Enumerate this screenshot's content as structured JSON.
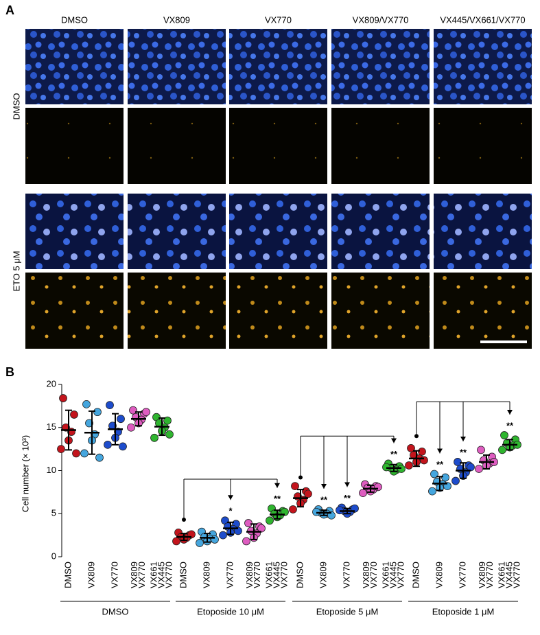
{
  "panel_a": {
    "label": "A",
    "columns": [
      "DMSO",
      "VX809",
      "VX770",
      "VX809/VX770",
      "VX445/VX661/VX770"
    ],
    "rows": [
      "DMSO",
      "ETO 5 μM"
    ]
  },
  "chart_data": {
    "type": "dotplot",
    "label": "B",
    "y_label": "Cell number (× 10³)",
    "ylim": [
      0,
      20
    ],
    "yticks": [
      0,
      5,
      10,
      15,
      20
    ],
    "colors": [
      "#c3141c",
      "#45a6de",
      "#1d4ccc",
      "#de5cc0",
      "#2fb52f"
    ],
    "groups": [
      {
        "name": "DMSO",
        "categories": [
          [
            "DMSO"
          ],
          [
            "VX809"
          ],
          [
            "VX770"
          ],
          [
            "VX809",
            "VX770"
          ],
          [
            "VX661",
            "VX445",
            "VX770"
          ]
        ],
        "mean": [
          14.7,
          14.4,
          14.8,
          16.0,
          15.1
        ],
        "sd": [
          2.3,
          2.5,
          1.8,
          0.8,
          1.0
        ],
        "points": [
          [
            18.4,
            16.5,
            15.0,
            14.5,
            13.5,
            12.5,
            12.0
          ],
          [
            17.7,
            16.8,
            15.5,
            14.2,
            13.5,
            12.0,
            11.5
          ],
          [
            17.6,
            16.0,
            15.2,
            14.5,
            13.8,
            13.0,
            12.8
          ],
          [
            17.0,
            16.6,
            16.2,
            15.9,
            15.5,
            15.0,
            16.8
          ],
          [
            16.2,
            15.8,
            15.5,
            15.0,
            14.6,
            13.8,
            14.2
          ]
        ]
      },
      {
        "name": "Etoposide 10 μM",
        "categories": [
          [
            "DMSO"
          ],
          [
            "VX809"
          ],
          [
            "VX770"
          ],
          [
            "VX809",
            "VX770"
          ],
          [
            "VX661",
            "VX445",
            "VX770"
          ]
        ],
        "mean": [
          2.3,
          2.2,
          3.3,
          2.9,
          4.9
        ],
        "sd": [
          0.4,
          0.5,
          0.7,
          0.9,
          0.5
        ],
        "points": [
          [
            2.8,
            2.5,
            2.3,
            2.2,
            2.0,
            1.8,
            2.6
          ],
          [
            2.9,
            2.6,
            2.3,
            2.1,
            1.8,
            1.6,
            2.0
          ],
          [
            4.2,
            3.8,
            3.5,
            3.2,
            2.8,
            2.5,
            3.0
          ],
          [
            3.9,
            3.5,
            3.0,
            2.7,
            2.2,
            1.8,
            3.3
          ],
          [
            5.6,
            5.3,
            5.0,
            4.8,
            4.6,
            4.2,
            5.2
          ]
        ],
        "comparison": {
          "from": 4.3,
          "bracket": 9.0,
          "targets": [
            2,
            4
          ],
          "labels": [
            "*",
            "**"
          ]
        }
      },
      {
        "name": "Etoposide 5 μM",
        "categories": [
          [
            "DMSO"
          ],
          [
            "VX809"
          ],
          [
            "VX770"
          ],
          [
            "VX809",
            "VX770"
          ],
          [
            "VX661",
            "VX445",
            "VX770"
          ]
        ],
        "mean": [
          6.8,
          5.1,
          5.3,
          7.9,
          10.3
        ],
        "sd": [
          1.0,
          0.3,
          0.3,
          0.4,
          0.4
        ],
        "points": [
          [
            8.2,
            7.6,
            7.0,
            6.6,
            6.2,
            5.5,
            7.3
          ],
          [
            5.5,
            5.3,
            5.1,
            5.0,
            4.9,
            5.2,
            4.8
          ],
          [
            5.7,
            5.5,
            5.3,
            5.2,
            5.0,
            5.4,
            5.6
          ],
          [
            8.4,
            8.2,
            8.0,
            7.8,
            7.6,
            7.4,
            8.1
          ],
          [
            10.8,
            10.5,
            10.3,
            10.1,
            9.9,
            10.4,
            10.2
          ]
        ],
        "comparison": {
          "from": 9.2,
          "bracket": 14.0,
          "targets": [
            1,
            2,
            4
          ],
          "labels": [
            "**",
            "**",
            "**"
          ]
        }
      },
      {
        "name": "Etoposide 1 μM",
        "categories": [
          [
            "DMSO"
          ],
          [
            "VX809"
          ],
          [
            "VX770"
          ],
          [
            "VX809",
            "VX770"
          ],
          [
            "VX661",
            "VX445",
            "VX770"
          ]
        ],
        "mean": [
          11.4,
          8.5,
          10.0,
          11.0,
          13.0
        ],
        "sd": [
          0.9,
          0.8,
          0.9,
          0.8,
          0.6
        ],
        "points": [
          [
            12.6,
            12.2,
            11.8,
            11.4,
            11.0,
            10.6,
            11.2
          ],
          [
            9.6,
            9.2,
            8.7,
            8.4,
            8.0,
            7.6,
            8.2
          ],
          [
            11.0,
            10.6,
            10.2,
            9.8,
            9.4,
            8.8,
            10.4
          ],
          [
            12.4,
            11.6,
            11.2,
            10.8,
            10.6,
            10.2,
            11.0
          ],
          [
            14.1,
            13.6,
            13.2,
            12.9,
            12.7,
            12.4,
            13.0
          ]
        ],
        "comparison": {
          "from": 14.0,
          "bracket": 18.0,
          "targets": [
            1,
            2,
            4
          ],
          "labels": [
            "**",
            "**",
            "**"
          ]
        }
      }
    ]
  }
}
